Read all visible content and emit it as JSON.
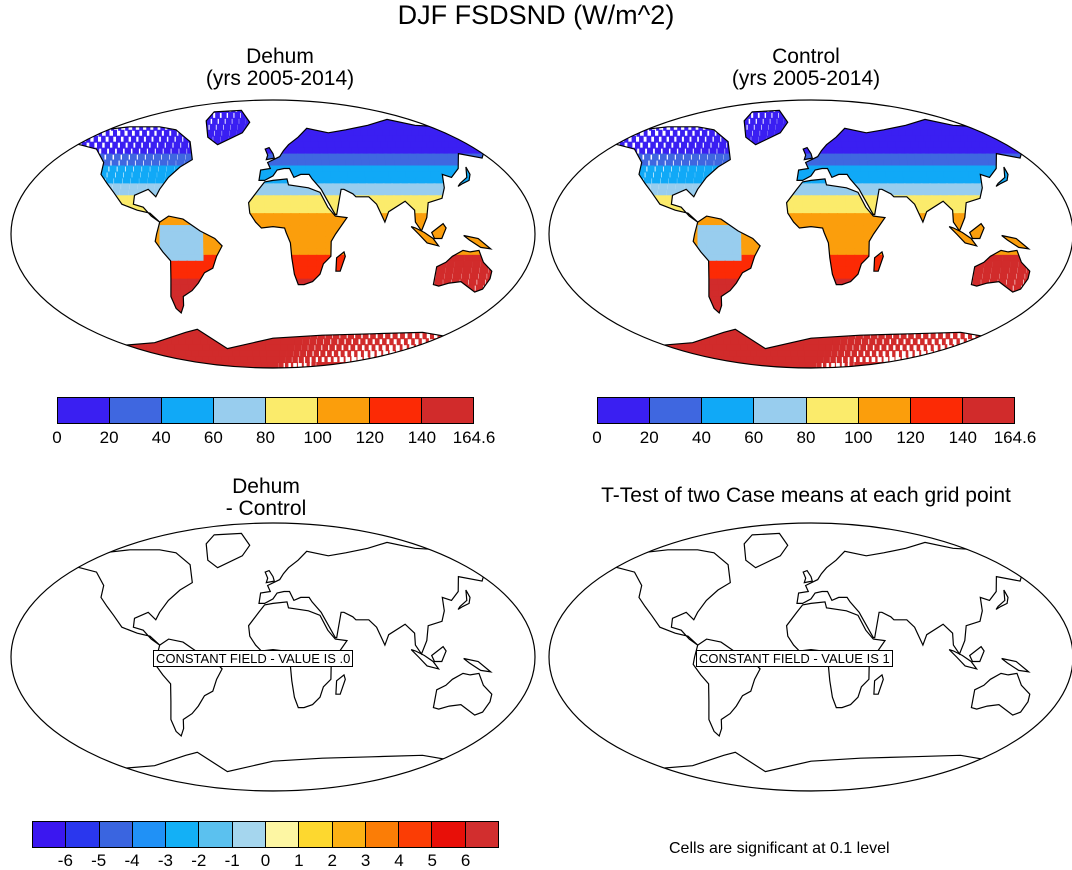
{
  "title": "DJF FSDSND (W/m^2)",
  "panels": {
    "dehum": {
      "title": "Dehum\n(yrs 2005-2014)"
    },
    "control": {
      "title": "Control\n(yrs 2005-2014)"
    },
    "diff": {
      "title": "Dehum\n- Control",
      "constant_label": "CONSTANT FIELD - VALUE IS .0"
    },
    "ttest": {
      "title": "T-Test of two Case means at each grid point",
      "constant_label": "CONSTANT FIELD - VALUE IS 1",
      "note": "Cells are significant at 0.1 level"
    }
  },
  "colorbar_abs": {
    "labels": [
      "0",
      "20",
      "40",
      "60",
      "80",
      "100",
      "120",
      "140",
      "164.6"
    ],
    "colors": [
      "#3a1ff2",
      "#3f67e0",
      "#10a9f7",
      "#98cdee",
      "#fbeb6b",
      "#fb9e0c",
      "#fc2a05",
      "#d12b2b"
    ]
  },
  "colorbar_diff": {
    "labels": [
      "-6",
      "-5",
      "-4",
      "-3",
      "-2",
      "-1",
      "0",
      "1",
      "2",
      "3",
      "4",
      "5",
      "6"
    ],
    "colors": [
      "#3b17f0",
      "#2a37ee",
      "#3a65e0",
      "#2091f6",
      "#13b0f6",
      "#5bc1ef",
      "#a5d6ee",
      "#fdf6a3",
      "#fdd82f",
      "#fcb114",
      "#fb7d06",
      "#fb3d05",
      "#e80f08",
      "#d22e2e"
    ]
  },
  "chart_data": {
    "type": "heatmap",
    "title": "DJF FSDSND (W/m^2)",
    "subplots": [
      {
        "name": "Dehum (yrs 2005-2014)",
        "range": [
          0,
          164.6
        ],
        "pattern": "low (0-20) at high northern latitudes, 100-160 in southern hemisphere, highest over Australia and Antarctica"
      },
      {
        "name": "Control (yrs 2005-2014)",
        "range": [
          0,
          164.6
        ],
        "pattern": "same as Dehum"
      },
      {
        "name": "Dehum - Control",
        "constant_value": 0
      },
      {
        "name": "T-Test of two Case means at each grid point",
        "constant_value": 1
      }
    ]
  }
}
